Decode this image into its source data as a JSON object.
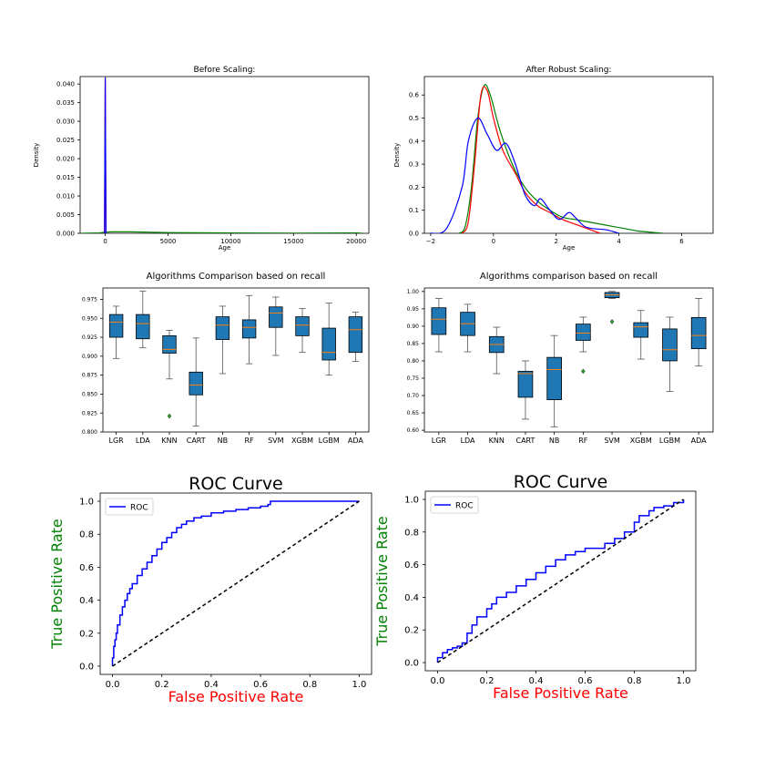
{
  "chart_data": [
    {
      "id": "before",
      "type": "line",
      "title": "Before Scaling:",
      "xlabel": "Age",
      "ylabel": "Density",
      "xlim": [
        -2000,
        21000
      ],
      "ylim": [
        0,
        0.042
      ],
      "xticks": [
        0,
        5000,
        10000,
        15000,
        20000
      ],
      "yticks": [
        0.0,
        0.005,
        0.01,
        0.015,
        0.02,
        0.025,
        0.03,
        0.035,
        0.04
      ],
      "ytick_decimals": 3,
      "grid": false,
      "series": [
        {
          "color": "#008000",
          "x": [
            -1900,
            -500,
            0,
            500,
            2000,
            5000,
            10000,
            15000,
            20000,
            20500
          ],
          "y": [
            0,
            0.0001,
            0.0003,
            0.0004,
            0.0004,
            0.0002,
            0.0001,
            5e-05,
            0.0001,
            0
          ]
        },
        {
          "color": "#ff0000",
          "x": [
            -60,
            -30,
            0,
            30,
            60
          ],
          "y": [
            0,
            0.02,
            0.0418,
            0.02,
            0
          ]
        },
        {
          "color": "#0000ff",
          "x": [
            -60,
            -30,
            0,
            30,
            60
          ],
          "y": [
            0,
            0.02,
            0.0418,
            0.02,
            0
          ]
        }
      ]
    },
    {
      "id": "after",
      "type": "line",
      "title": "After Robust Scaling:",
      "xlabel": "Age",
      "ylabel": "Density",
      "xlim": [
        -2.2,
        7.0
      ],
      "ylim": [
        0,
        0.68
      ],
      "xticks": [
        -2,
        0,
        2,
        4,
        6
      ],
      "yticks": [
        0.0,
        0.1,
        0.2,
        0.3,
        0.4,
        0.5,
        0.6
      ],
      "ytick_decimals": 1,
      "grid": false,
      "series": [
        {
          "color": "#008000",
          "x": [
            -1.1,
            -0.9,
            -0.7,
            -0.5,
            -0.3,
            -0.1,
            0.2,
            0.6,
            1.0,
            1.4,
            1.8,
            2.2,
            2.6,
            3.0,
            3.4,
            3.8,
            4.2,
            4.6,
            5.0,
            5.4
          ],
          "y": [
            0.0,
            0.03,
            0.2,
            0.5,
            0.64,
            0.6,
            0.45,
            0.3,
            0.2,
            0.14,
            0.1,
            0.07,
            0.06,
            0.05,
            0.04,
            0.03,
            0.02,
            0.01,
            0.005,
            0.0
          ]
        },
        {
          "color": "#ff0000",
          "x": [
            -1.0,
            -0.8,
            -0.6,
            -0.4,
            -0.2,
            0.0,
            0.3,
            0.7,
            1.0,
            1.4,
            1.8,
            2.2,
            2.6,
            3.0,
            3.4
          ],
          "y": [
            0.0,
            0.05,
            0.3,
            0.6,
            0.62,
            0.5,
            0.36,
            0.26,
            0.18,
            0.12,
            0.09,
            0.06,
            0.04,
            0.02,
            0.0
          ]
        },
        {
          "color": "#0000ff",
          "x": [
            -2.0,
            -1.5,
            -1.0,
            -0.8,
            -0.5,
            -0.2,
            0.1,
            0.4,
            0.7,
            1.0,
            1.3,
            1.5,
            1.8,
            2.1,
            2.4,
            2.6,
            2.9,
            3.2,
            3.6,
            4.0
          ],
          "y": [
            0.0,
            0.02,
            0.2,
            0.4,
            0.5,
            0.43,
            0.36,
            0.39,
            0.3,
            0.17,
            0.12,
            0.15,
            0.1,
            0.06,
            0.09,
            0.07,
            0.03,
            0.02,
            0.015,
            0.0
          ]
        }
      ]
    },
    {
      "id": "box1",
      "type": "box",
      "title": "Algorithms Comparison based on recall",
      "categories": [
        "LGR",
        "LDA",
        "KNN",
        "CART",
        "NB",
        "RF",
        "SVM",
        "XGBM",
        "LGBM",
        "ADA"
      ],
      "ylim": [
        0.8,
        0.99
      ],
      "yticks": [
        0.8,
        0.825,
        0.85,
        0.875,
        0.9,
        0.925,
        0.95,
        0.975
      ],
      "ytick_decimals": 3,
      "box_color": "#1f77b4",
      "median_color": "#ff7f0e",
      "boxes": [
        {
          "min": 0.897,
          "q1": 0.925,
          "median": 0.945,
          "q3": 0.955,
          "max": 0.966
        },
        {
          "min": 0.911,
          "q1": 0.923,
          "median": 0.943,
          "q3": 0.955,
          "max": 0.986
        },
        {
          "min": 0.87,
          "q1": 0.904,
          "median": 0.909,
          "q3": 0.927,
          "max": 0.934,
          "outliers": [
            0.821
          ]
        },
        {
          "min": 0.808,
          "q1": 0.849,
          "median": 0.862,
          "q3": 0.879,
          "max": 0.924
        },
        {
          "min": 0.877,
          "q1": 0.922,
          "median": 0.941,
          "q3": 0.952,
          "max": 0.966
        },
        {
          "min": 0.89,
          "q1": 0.924,
          "median": 0.938,
          "q3": 0.948,
          "max": 0.98
        },
        {
          "min": 0.901,
          "q1": 0.938,
          "median": 0.957,
          "q3": 0.965,
          "max": 0.978
        },
        {
          "min": 0.905,
          "q1": 0.927,
          "median": 0.941,
          "q3": 0.952,
          "max": 0.963
        },
        {
          "min": 0.875,
          "q1": 0.895,
          "median": 0.905,
          "q3": 0.937,
          "max": 0.97
        },
        {
          "min": 0.893,
          "q1": 0.905,
          "median": 0.935,
          "q3": 0.952,
          "max": 0.958
        }
      ]
    },
    {
      "id": "box2",
      "type": "box",
      "title": "Algorithms comparison based on recall",
      "categories": [
        "LGR",
        "LDA",
        "KNN",
        "CART",
        "NB",
        "RF",
        "SVM",
        "XGBM",
        "LGBM",
        "ADA"
      ],
      "ylim": [
        0.595,
        1.01
      ],
      "yticks": [
        0.6,
        0.65,
        0.7,
        0.75,
        0.8,
        0.85,
        0.9,
        0.95,
        1.0
      ],
      "ytick_decimals": 2,
      "box_color": "#1f77b4",
      "median_color": "#ff7f0e",
      "boxes": [
        {
          "min": 0.826,
          "q1": 0.876,
          "median": 0.92,
          "q3": 0.953,
          "max": 0.98
        },
        {
          "min": 0.826,
          "q1": 0.873,
          "median": 0.907,
          "q3": 0.94,
          "max": 0.963
        },
        {
          "min": 0.763,
          "q1": 0.824,
          "median": 0.847,
          "q3": 0.87,
          "max": 0.897
        },
        {
          "min": 0.632,
          "q1": 0.695,
          "median": 0.763,
          "q3": 0.77,
          "max": 0.8
        },
        {
          "min": 0.61,
          "q1": 0.688,
          "median": 0.775,
          "q3": 0.81,
          "max": 0.873
        },
        {
          "min": 0.826,
          "q1": 0.859,
          "median": 0.88,
          "q3": 0.906,
          "max": 0.926,
          "outliers": [
            0.77
          ]
        },
        {
          "min": 0.98,
          "q1": 0.982,
          "median": 0.99,
          "q3": 0.997,
          "max": 1.0,
          "outliers": [
            0.913
          ]
        },
        {
          "min": 0.805,
          "q1": 0.868,
          "median": 0.898,
          "q3": 0.91,
          "max": 0.945
        },
        {
          "min": 0.712,
          "q1": 0.8,
          "median": 0.832,
          "q3": 0.892,
          "max": 0.926
        },
        {
          "min": 0.785,
          "q1": 0.835,
          "median": 0.873,
          "q3": 0.925,
          "max": 0.98
        }
      ]
    },
    {
      "id": "roc1",
      "type": "line",
      "title": "ROC Curve",
      "xlabel": "False Positive Rate",
      "ylabel": "True Positive Rate",
      "xlabel_color": "#ff0000",
      "ylabel_color": "#008000",
      "xlim": [
        -0.05,
        1.05
      ],
      "ylim": [
        -0.05,
        1.05
      ],
      "xticks": [
        0.0,
        0.2,
        0.4,
        0.6,
        0.8,
        1.0
      ],
      "yticks": [
        0.0,
        0.2,
        0.4,
        0.6,
        0.8,
        1.0
      ],
      "ytick_decimals": 1,
      "legend": "top-left",
      "grid": false,
      "series": [
        {
          "name": "ROC",
          "color": "#0000ff",
          "x": [
            0.0,
            0.0,
            0.005,
            0.01,
            0.015,
            0.02,
            0.03,
            0.04,
            0.05,
            0.06,
            0.07,
            0.08,
            0.1,
            0.12,
            0.14,
            0.16,
            0.18,
            0.2,
            0.22,
            0.24,
            0.26,
            0.28,
            0.3,
            0.33,
            0.36,
            0.4,
            0.45,
            0.5,
            0.55,
            0.6,
            0.63,
            0.64,
            0.7,
            0.8,
            0.9,
            1.0
          ],
          "y": [
            0.0,
            0.05,
            0.12,
            0.16,
            0.2,
            0.25,
            0.31,
            0.36,
            0.4,
            0.44,
            0.47,
            0.5,
            0.55,
            0.59,
            0.63,
            0.67,
            0.71,
            0.75,
            0.78,
            0.81,
            0.84,
            0.86,
            0.88,
            0.9,
            0.91,
            0.93,
            0.94,
            0.95,
            0.96,
            0.97,
            0.98,
            1.0,
            1.0,
            1.0,
            1.0,
            1.0
          ]
        },
        {
          "color": "#000000",
          "dashed": true,
          "x": [
            0,
            1
          ],
          "y": [
            0,
            1
          ]
        }
      ]
    },
    {
      "id": "roc2",
      "type": "line",
      "title": "ROC Curve",
      "xlabel": "False Positive Rate",
      "ylabel": "True Positive Rate",
      "xlabel_color": "#ff0000",
      "ylabel_color": "#008000",
      "xlim": [
        -0.05,
        1.05
      ],
      "ylim": [
        -0.05,
        1.05
      ],
      "xticks": [
        0.0,
        0.2,
        0.4,
        0.6,
        0.8,
        1.0
      ],
      "yticks": [
        0.0,
        0.2,
        0.4,
        0.6,
        0.8,
        1.0
      ],
      "ytick_decimals": 1,
      "legend": "top-left",
      "grid": false,
      "series": [
        {
          "name": "ROC",
          "color": "#0000ff",
          "x": [
            0.0,
            0.0,
            0.02,
            0.04,
            0.06,
            0.08,
            0.1,
            0.12,
            0.14,
            0.16,
            0.2,
            0.22,
            0.24,
            0.28,
            0.32,
            0.36,
            0.4,
            0.44,
            0.48,
            0.52,
            0.56,
            0.6,
            0.64,
            0.68,
            0.72,
            0.76,
            0.8,
            0.82,
            0.86,
            0.88,
            0.92,
            0.96,
            1.0
          ],
          "y": [
            0.0,
            0.03,
            0.06,
            0.08,
            0.09,
            0.1,
            0.12,
            0.18,
            0.23,
            0.28,
            0.33,
            0.36,
            0.4,
            0.43,
            0.47,
            0.51,
            0.55,
            0.59,
            0.63,
            0.66,
            0.68,
            0.7,
            0.7,
            0.73,
            0.76,
            0.8,
            0.86,
            0.9,
            0.93,
            0.95,
            0.96,
            0.98,
            1.0
          ]
        },
        {
          "color": "#000000",
          "dashed": true,
          "x": [
            0,
            1
          ],
          "y": [
            0,
            1
          ]
        }
      ]
    }
  ]
}
